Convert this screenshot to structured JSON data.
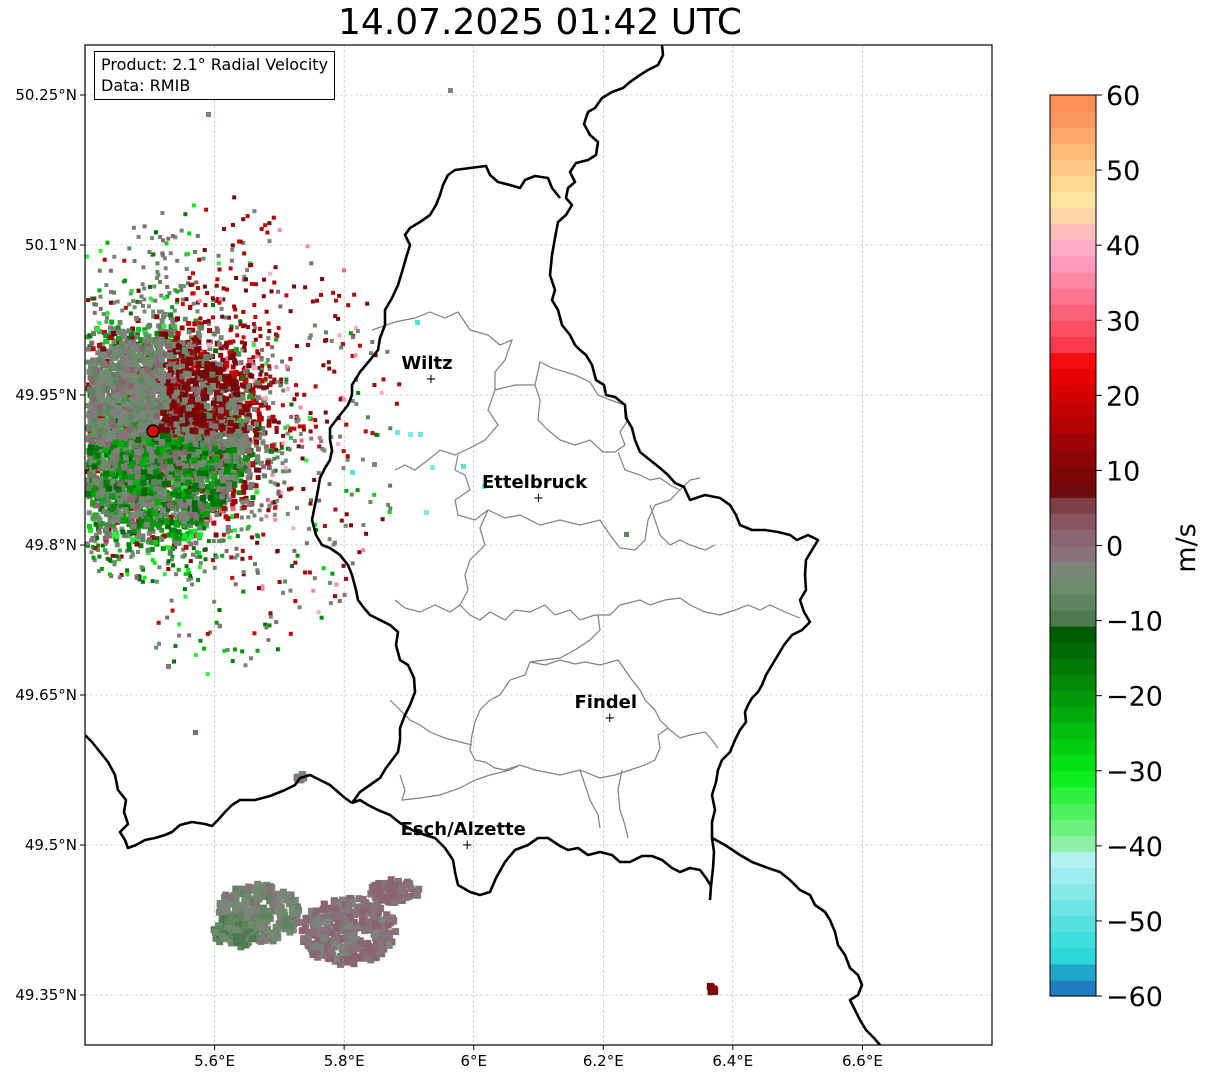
{
  "title": "14.07.2025 01:42 UTC",
  "info": {
    "product": "Product: 2.1° Radial Velocity",
    "source": "Data: RMIB"
  },
  "map": {
    "lon_range": [
      5.4,
      6.8
    ],
    "lat_range": [
      49.3,
      50.3
    ],
    "x_ticks": [
      {
        "value": 5.6,
        "label": "5.6°E"
      },
      {
        "value": 5.8,
        "label": "5.8°E"
      },
      {
        "value": 6.0,
        "label": "6°E"
      },
      {
        "value": 6.2,
        "label": "6.2°E"
      },
      {
        "value": 6.4,
        "label": "6.4°E"
      },
      {
        "value": 6.6,
        "label": "6.6°E"
      }
    ],
    "y_ticks": [
      {
        "value": 50.25,
        "label": "50.25°N"
      },
      {
        "value": 50.1,
        "label": "50.1°N"
      },
      {
        "value": 49.95,
        "label": "49.95°N"
      },
      {
        "value": 49.8,
        "label": "49.8°N"
      },
      {
        "value": 49.65,
        "label": "49.65°N"
      },
      {
        "value": 49.5,
        "label": "49.5°N"
      },
      {
        "value": 49.35,
        "label": "49.35°N"
      }
    ],
    "grid": true,
    "radar_site": {
      "lon": 5.505,
      "lat": 49.914
    },
    "cities": [
      {
        "name": "Wiltz",
        "lon": 5.934,
        "lat": 49.966
      },
      {
        "name": "Ettelbruck",
        "lon": 6.1,
        "lat": 49.847
      },
      {
        "name": "Findel",
        "lon": 6.21,
        "lat": 49.627
      },
      {
        "name": "Esch/Alzette",
        "lon": 5.99,
        "lat": 49.5
      }
    ]
  },
  "colorbar": {
    "label": "m/s",
    "range": [
      -60,
      60
    ],
    "ticks": [
      {
        "value": 60,
        "label": "60"
      },
      {
        "value": 50,
        "label": "50"
      },
      {
        "value": 40,
        "label": "40"
      },
      {
        "value": 30,
        "label": "30"
      },
      {
        "value": 20,
        "label": "20"
      },
      {
        "value": 10,
        "label": "10"
      },
      {
        "value": 0,
        "label": "0"
      },
      {
        "value": -10,
        "label": "−10"
      },
      {
        "value": -20,
        "label": "−20"
      },
      {
        "value": -30,
        "label": "−30"
      },
      {
        "value": -40,
        "label": "−40"
      },
      {
        "value": -50,
        "label": "−50"
      },
      {
        "value": -60,
        "label": "−60"
      }
    ],
    "colors": [
      "#1f7ebf",
      "#22a7cc",
      "#2ed6d9",
      "#3fdede",
      "#55e1e0",
      "#6de5e4",
      "#86e9e8",
      "#9ceded",
      "#b1f1f0",
      "#8ef0a5",
      "#6cf07e",
      "#4df05d",
      "#2ef03f",
      "#10ee22",
      "#00e014",
      "#00cf10",
      "#00bd0e",
      "#00ab0c",
      "#009a0a",
      "#008a08",
      "#007a06",
      "#006a04",
      "#005c03",
      "#4f7a4f",
      "#5e8460",
      "#6d8b6d",
      "#7c857a",
      "#87737c",
      "#8a6570",
      "#8a5560",
      "#7e4048",
      "#6e0a0c",
      "#7d0608",
      "#8e0407",
      "#a00306",
      "#b20305",
      "#c40204",
      "#d60103",
      "#e80002",
      "#f50c10",
      "#fc3a4e",
      "#fd4e63",
      "#fd617a",
      "#fe7491",
      "#fe87a6",
      "#fe9bbb",
      "#ffaac6",
      "#ffbcbc",
      "#ffd4a8",
      "#ffe69c",
      "#ffd990",
      "#ffc884",
      "#ffb878",
      "#ffa86c",
      "#ff9860",
      "#ff8f55"
    ]
  }
}
